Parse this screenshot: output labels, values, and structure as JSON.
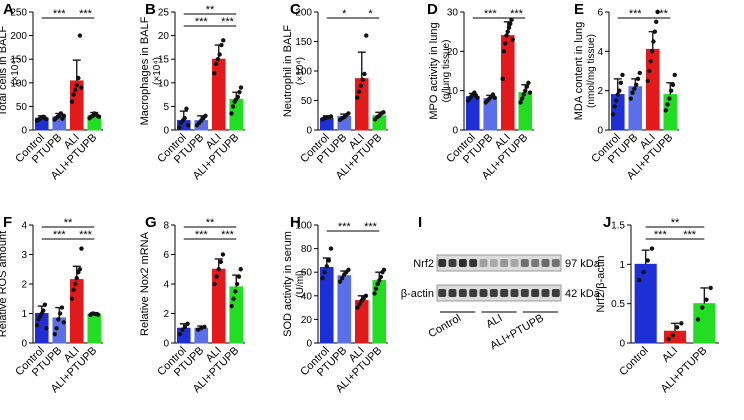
{
  "figure": {
    "colors": {
      "control": "#1f2fd6",
      "ptupb": "#5a6fe8",
      "ali": "#e31a1c",
      "ali_ptupb": "#22dd22",
      "error": "#1a1a1a"
    }
  },
  "chart_data": [
    {
      "panel": "A",
      "type": "bar",
      "ylabel": "Total cells in BALF",
      "yunit": "(×10⁴)",
      "categories": [
        "Control",
        "PTUPB",
        "ALI",
        "ALI+PTUPB"
      ],
      "values": [
        25,
        28,
        104,
        31
      ],
      "errors": [
        5,
        7,
        44,
        6
      ],
      "points": [
        [
          20,
          22,
          24,
          26,
          28,
          25,
          23
        ],
        [
          22,
          25,
          28,
          30,
          35,
          24,
          30
        ],
        [
          60,
          75,
          85,
          95,
          110,
          200,
          90
        ],
        [
          25,
          28,
          30,
          35,
          33,
          30,
          28
        ]
      ],
      "ylim": [
        0,
        250
      ],
      "yticks": [
        0,
        50,
        100,
        150,
        200,
        250
      ],
      "sig": [
        {
          "from": 0,
          "to": 2,
          "label": "***"
        },
        {
          "from": 2,
          "to": 3,
          "label": "***"
        }
      ]
    },
    {
      "panel": "B",
      "type": "bar",
      "ylabel": "Macrophages in BALF",
      "yunit": "(×10⁴)",
      "categories": [
        "Control",
        "PTUPB",
        "ALI",
        "ALI+PTUPB"
      ],
      "values": [
        2.0,
        2.0,
        15.0,
        6.5
      ],
      "errors": [
        2.0,
        1.0,
        3.0,
        1.5
      ],
      "points": [
        [
          0.5,
          1.5,
          2.0,
          2.5,
          4.5,
          1.0
        ],
        [
          1.0,
          1.5,
          2.0,
          2.5,
          3.0
        ],
        [
          12,
          14,
          15,
          16,
          18,
          19
        ],
        [
          3.5,
          5,
          6,
          6.5,
          7,
          8,
          9
        ]
      ],
      "ylim": [
        0,
        25
      ],
      "yticks": [
        0,
        5,
        10,
        15,
        20,
        25
      ],
      "sig": [
        {
          "from": 0,
          "to": 3,
          "label": "**"
        },
        {
          "from": 0,
          "to": 2,
          "label": "***"
        },
        {
          "from": 2,
          "to": 3,
          "label": "***"
        }
      ]
    },
    {
      "panel": "C",
      "type": "bar",
      "ylabel": "Neutrophil in BALF",
      "yunit": "(×10⁴)",
      "categories": [
        "Control",
        "PTUPB",
        "ALI",
        "ALI+PTUPB"
      ],
      "values": [
        20,
        23,
        87,
        24
      ],
      "errors": [
        4,
        4,
        45,
        6
      ],
      "points": [
        [
          18,
          20,
          21,
          22,
          23
        ],
        [
          17,
          20,
          22,
          25,
          28
        ],
        [
          55,
          65,
          75,
          85,
          95,
          160
        ],
        [
          18,
          22,
          24,
          28,
          30
        ]
      ],
      "ylim": [
        0,
        200
      ],
      "yticks": [
        0,
        50,
        100,
        150,
        200
      ],
      "sig": [
        {
          "from": 0,
          "to": 2,
          "label": "*"
        },
        {
          "from": 2,
          "to": 3,
          "label": "*"
        }
      ]
    },
    {
      "panel": "D",
      "type": "bar",
      "ylabel": "MPO activity in lung",
      "yunit": "(g/lung tissue)",
      "categories": [
        "Control",
        "PTUPB",
        "ALI",
        "ALI+PTUPB"
      ],
      "values": [
        8.5,
        8.0,
        24.0,
        9.5
      ],
      "errors": [
        0.8,
        0.8,
        3.5,
        2.0
      ],
      "points": [
        [
          7.5,
          8,
          8.5,
          9,
          9.5,
          8.8,
          8.2
        ],
        [
          7,
          7.5,
          8,
          8.5,
          9,
          8.2
        ],
        [
          13,
          20,
          22,
          24,
          25,
          26,
          27,
          28,
          23
        ],
        [
          7,
          8,
          9,
          10,
          11,
          12,
          9.5
        ]
      ],
      "ylim": [
        0,
        30
      ],
      "yticks": [
        0,
        10,
        20,
        30
      ],
      "sig": [
        {
          "from": 0,
          "to": 2,
          "label": "***"
        },
        {
          "from": 2,
          "to": 3,
          "label": "***"
        }
      ]
    },
    {
      "panel": "E",
      "type": "bar",
      "ylabel": "MDA content in lung",
      "yunit": "(nmol/mg tissue)",
      "categories": [
        "Control",
        "PTUPB",
        "ALI",
        "ALI+PTUPB"
      ],
      "values": [
        1.8,
        2.2,
        4.1,
        1.8
      ],
      "errors": [
        0.8,
        0.4,
        0.9,
        0.6
      ],
      "points": [
        [
          0.8,
          1.2,
          1.5,
          1.8,
          2.0,
          2.4,
          2.8
        ],
        [
          1.6,
          1.9,
          2.1,
          2.3,
          2.6,
          2.9
        ],
        [
          2.5,
          3.0,
          3.5,
          4.0,
          4.5,
          5.0,
          5.5,
          6.0
        ],
        [
          1.0,
          1.3,
          1.6,
          2.0,
          2.3,
          2.8
        ]
      ],
      "ylim": [
        0,
        6
      ],
      "yticks": [
        0,
        2,
        4,
        6
      ],
      "sig": [
        {
          "from": 0,
          "to": 2,
          "label": "***"
        },
        {
          "from": 2,
          "to": 3,
          "label": "***"
        }
      ]
    },
    {
      "panel": "F",
      "type": "bar",
      "ylabel": "Relative ROS amount",
      "yunit": "",
      "categories": [
        "Control",
        "PTUPB",
        "ALI",
        "ALI+PTUPB"
      ],
      "values": [
        1.0,
        0.85,
        2.15,
        0.98
      ],
      "errors": [
        0.25,
        0.35,
        0.45,
        0.05
      ],
      "points": [
        [
          0.6,
          0.8,
          0.9,
          1.0,
          1.1,
          1.3,
          0.5
        ],
        [
          0.3,
          0.5,
          0.8,
          1.0,
          1.2,
          0.7
        ],
        [
          1.5,
          1.8,
          2.0,
          2.2,
          2.4,
          2.5,
          3.2
        ],
        [
          0.95,
          1.0,
          0.98,
          0.96
        ]
      ],
      "ylim": [
        0,
        4
      ],
      "yticks": [
        0,
        1,
        2,
        3,
        4
      ],
      "sig": [
        {
          "from": 0,
          "to": 3,
          "label": "**"
        },
        {
          "from": 0,
          "to": 2,
          "label": "***"
        },
        {
          "from": 2,
          "to": 3,
          "label": "***"
        }
      ]
    },
    {
      "panel": "G",
      "type": "bar",
      "ylabel": "Relative Nox2 mRNA",
      "yunit": "",
      "categories": [
        "Control",
        "PTUPB",
        "ALI",
        "ALI+PTUPB"
      ],
      "values": [
        1.0,
        1.0,
        5.0,
        3.8
      ],
      "errors": [
        0.3,
        0.15,
        0.7,
        0.8
      ],
      "points": [
        [
          0.6,
          0.9,
          1.1,
          1.3
        ],
        [
          0.9,
          1.0,
          1.1
        ],
        [
          4.0,
          4.5,
          5.0,
          5.5,
          6.0
        ],
        [
          2.5,
          3.0,
          3.5,
          4.0,
          4.5,
          5.0
        ]
      ],
      "ylim": [
        0,
        8
      ],
      "yticks": [
        0,
        2,
        4,
        6,
        8
      ],
      "sig": [
        {
          "from": 0,
          "to": 3,
          "label": "**"
        },
        {
          "from": 0,
          "to": 2,
          "label": "***"
        },
        {
          "from": 2,
          "to": 3,
          "label": "***"
        }
      ]
    },
    {
      "panel": "H",
      "type": "bar",
      "ylabel": "SOD activity in serum",
      "yunit": "(U/ml)",
      "categories": [
        "Control",
        "PTUPB",
        "ALI",
        "ALI+PTUPB"
      ],
      "values": [
        64,
        57,
        36,
        53
      ],
      "errors": [
        8,
        4,
        4,
        7
      ],
      "points": [
        [
          55,
          60,
          65,
          70,
          80
        ],
        [
          52,
          55,
          58,
          60,
          62
        ],
        [
          30,
          33,
          36,
          38,
          40
        ],
        [
          42,
          46,
          50,
          53,
          56,
          60,
          62
        ]
      ],
      "ylim": [
        0,
        100
      ],
      "yticks": [
        0,
        20,
        40,
        60,
        80,
        100
      ],
      "sig": [
        {
          "from": 0,
          "to": 2,
          "label": "***"
        },
        {
          "from": 2,
          "to": 3,
          "label": "***"
        }
      ]
    },
    {
      "panel": "J",
      "type": "bar",
      "ylabel": "Nrf2/β-actin",
      "yunit": "",
      "categories": [
        "Control",
        "ALI",
        "ALI+PTUPB"
      ],
      "values": [
        1.0,
        0.15,
        0.5
      ],
      "errors": [
        0.18,
        0.1,
        0.2
      ],
      "points": [
        [
          0.8,
          0.9,
          1.05,
          1.2
        ],
        [
          0.05,
          0.1,
          0.2,
          0.25
        ],
        [
          0.3,
          0.45,
          0.55,
          0.7
        ]
      ],
      "ylim": [
        0,
        1.5
      ],
      "yticks": [
        0.0,
        0.5,
        1.0,
        1.5
      ],
      "sig": [
        {
          "from": 0,
          "to": 2,
          "label": "**"
        },
        {
          "from": 0,
          "to": 1,
          "label": "***"
        },
        {
          "from": 1,
          "to": 2,
          "label": "***"
        }
      ]
    }
  ],
  "blot": {
    "panel": "I",
    "rows": [
      {
        "name": "Nrf2",
        "size": "97 kDa"
      },
      {
        "name": "β-actin",
        "size": "42 kDa"
      }
    ],
    "groups": [
      "Control",
      "ALI",
      "ALI+PTUPB"
    ],
    "nrf2_intensity": [
      0.9,
      0.85,
      0.92,
      0.88,
      0.35,
      0.3,
      0.4,
      0.32,
      0.6,
      0.55,
      0.62,
      0.58
    ],
    "actin_intensity": [
      0.85,
      0.86,
      0.84,
      0.85,
      0.85,
      0.84,
      0.86,
      0.85,
      0.85,
      0.86,
      0.84,
      0.85
    ]
  }
}
